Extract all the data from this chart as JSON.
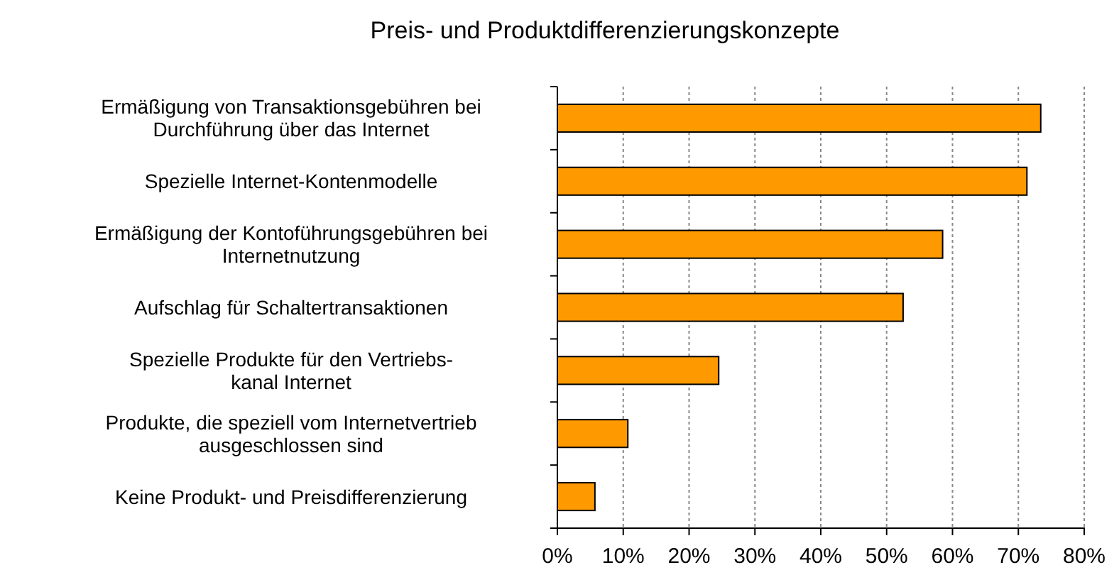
{
  "chart_data": {
    "type": "bar",
    "orientation": "horizontal",
    "title": "Preis- und Produktdifferenzierungskonzepte",
    "categories": [
      "Ermäßigung von Transaktionsgebühren bei\nDurchführung über das Internet",
      "Spezielle Internet-Kontenmodelle",
      "Ermäßigung der Kontoführungsgebühren bei\nInternetnutzung",
      "Aufschlag für Schaltertransaktionen",
      "Spezielle Produkte für den Vertriebs-\nkanal Internet",
      "Produkte, die speziell vom Internetvertrieb\nausgeschlossen sind",
      "Keine Produkt- und Preisdifferenzierung"
    ],
    "values": [
      73.4,
      71.3,
      58.5,
      52.5,
      24.5,
      10.7,
      5.7
    ],
    "color": "#ff9900",
    "xlim": [
      0,
      80
    ],
    "xticks": [
      {
        "value": 0,
        "label": "0%"
      },
      {
        "value": 10,
        "label": "10%"
      },
      {
        "value": 20,
        "label": "20%"
      },
      {
        "value": 30,
        "label": "30%"
      },
      {
        "value": 40,
        "label": "40%"
      },
      {
        "value": 50,
        "label": "50%"
      },
      {
        "value": 60,
        "label": "60%"
      },
      {
        "value": 70,
        "label": "70%"
      },
      {
        "value": 80,
        "label": "80%"
      }
    ],
    "grid": "x"
  }
}
